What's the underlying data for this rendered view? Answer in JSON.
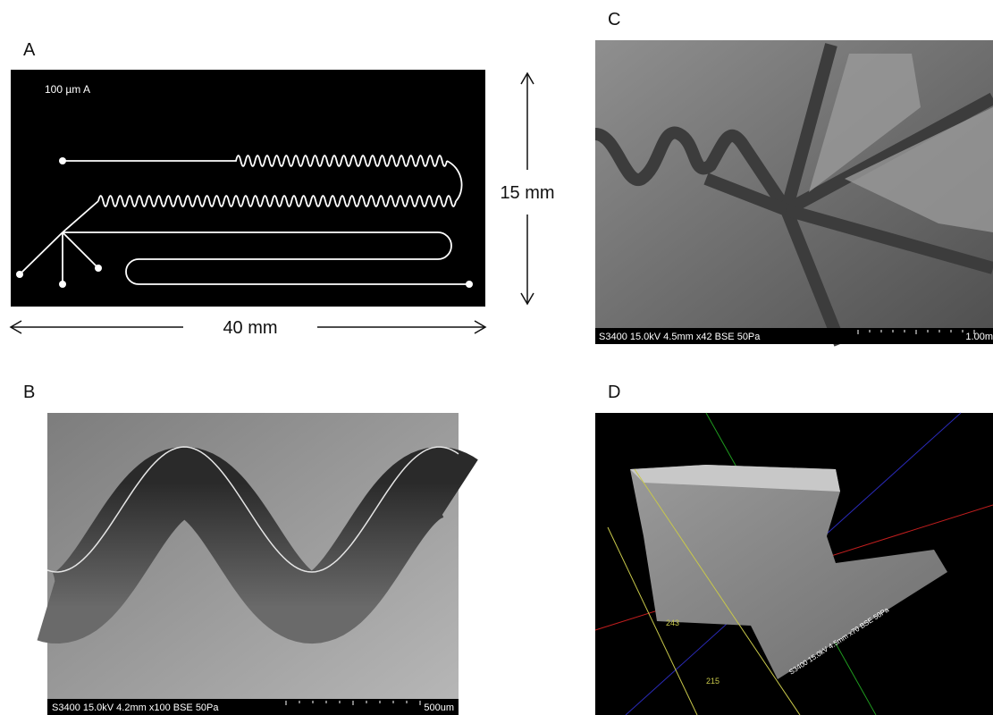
{
  "panel_a": {
    "label": "A",
    "design_text": "100 µm A",
    "height_text": "15 mm",
    "width_text": "40 mm"
  },
  "panel_b": {
    "label": "B",
    "sem_caption": "S3400 15.0kV 4.2mm x100 BSE 50Pa",
    "scale_bar": "500um"
  },
  "panel_c": {
    "label": "C",
    "sem_caption": "S3400 15.0kV 4.5mm x42 BSE 50Pa",
    "scale_bar": "1.00m"
  },
  "panel_d": {
    "label": "D",
    "sem_caption": "S3400 15.0kV 4.5mm x70 BSE 50Pa",
    "measure_labels": [
      "243",
      "215"
    ]
  }
}
